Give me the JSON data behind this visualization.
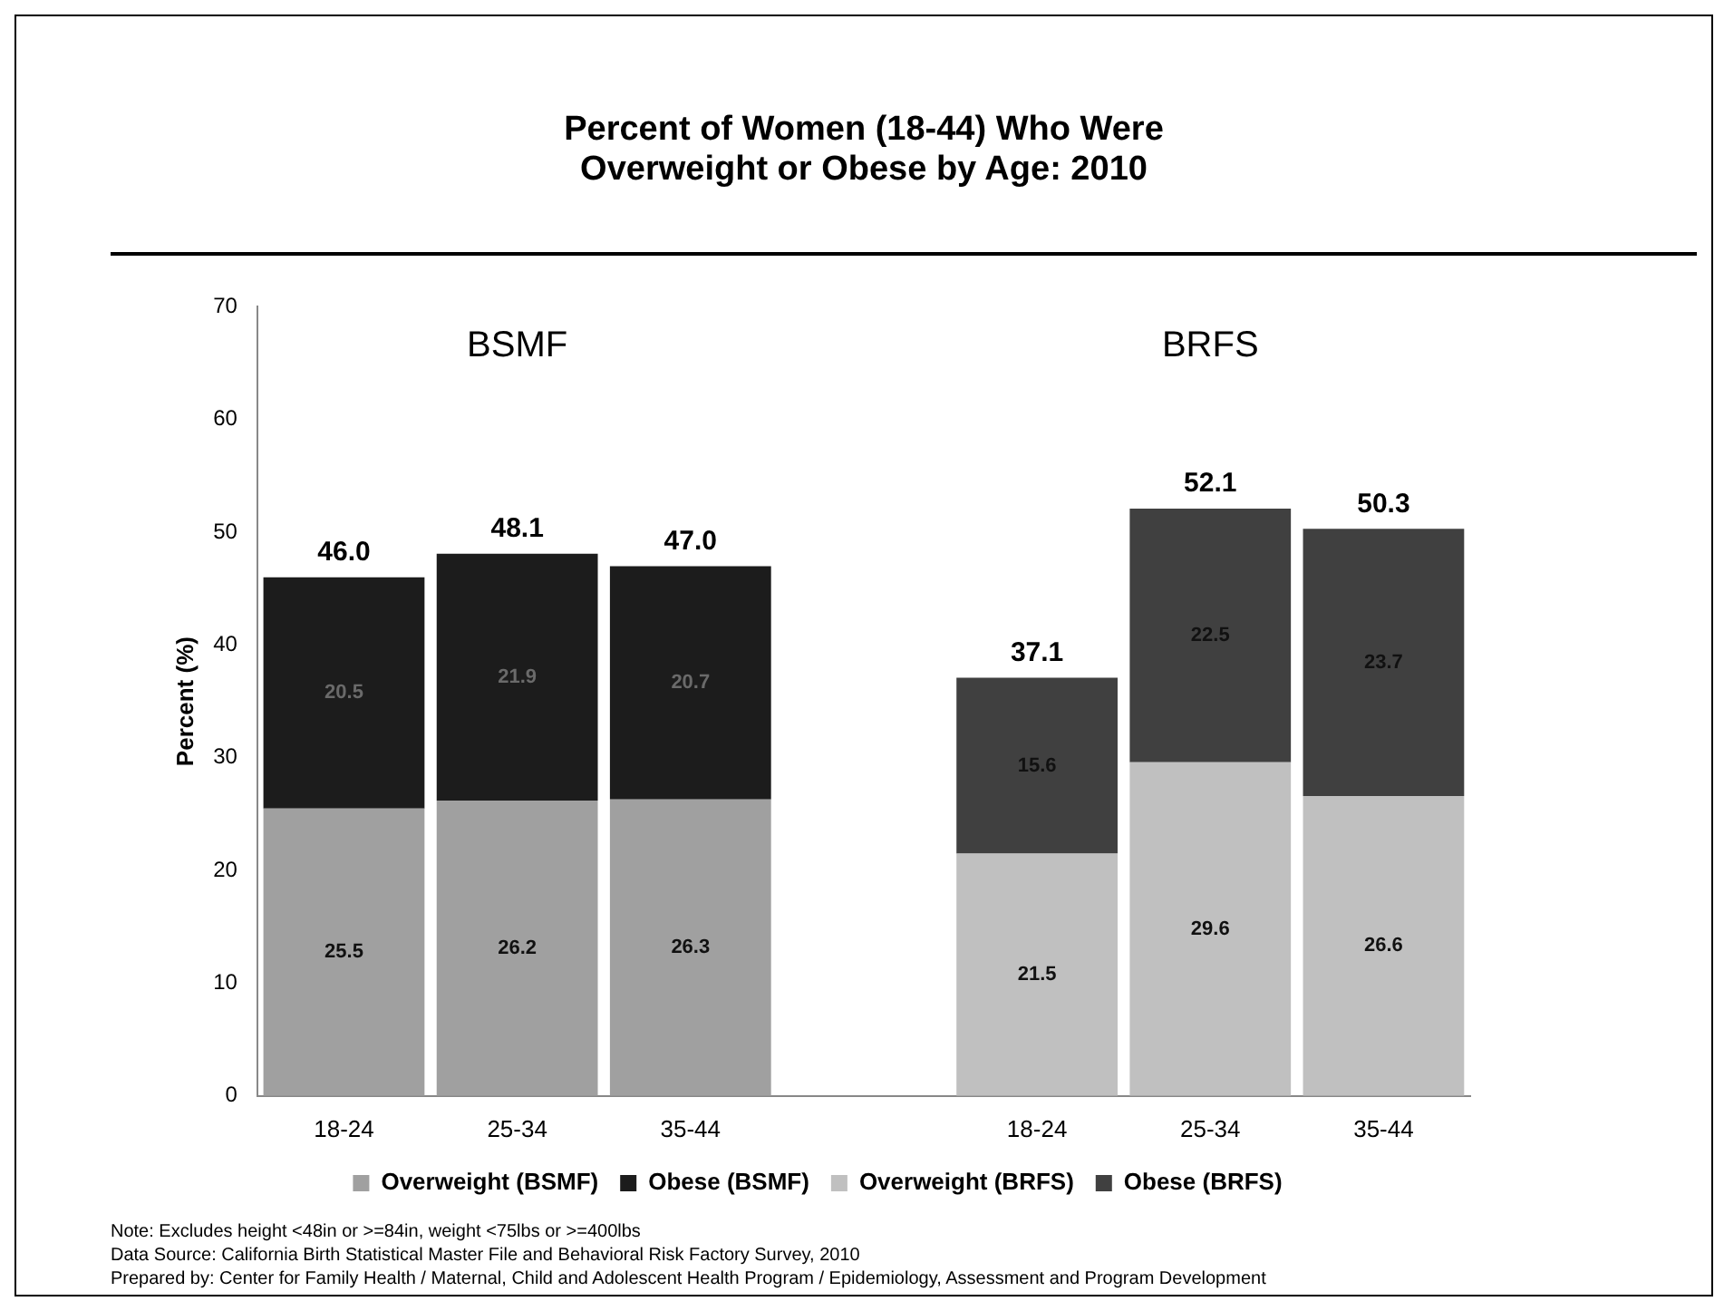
{
  "chart_data": {
    "type": "bar",
    "title": "Percent of Women (18-44) Who Were Overweight or Obese by Age: 2010",
    "ylabel": "Percent (%)",
    "categories": [
      "18-24",
      "25-34",
      "35-44",
      null,
      "18-24",
      "25-34",
      "35-44"
    ],
    "series": [
      {
        "name": "Overweight (BSMF)",
        "color": "#a0a0a0",
        "values": [
          25.5,
          26.2,
          26.3,
          null,
          null,
          null,
          null
        ]
      },
      {
        "name": "Obese (BSMF)",
        "color": "#1c1c1c",
        "values": [
          20.5,
          21.9,
          20.7,
          null,
          null,
          null,
          null
        ]
      },
      {
        "name": "Overweight (BRFS)",
        "color": "#c0c0c0",
        "values": [
          null,
          null,
          null,
          null,
          21.5,
          29.6,
          26.6
        ]
      },
      {
        "name": "Obese (BRFS)",
        "color": "#404040",
        "values": [
          null,
          null,
          null,
          null,
          15.6,
          22.5,
          23.7
        ]
      }
    ],
    "stacked": true,
    "data_labels": true,
    "totals": [
      "46.0",
      "48.1",
      "47.0",
      null,
      "37.1",
      "52.1",
      "50.3"
    ],
    "ylim": [
      0,
      70
    ],
    "yticks": [
      0,
      10,
      20,
      30,
      40,
      50,
      60,
      70
    ],
    "grid": false,
    "legend": "bottom",
    "annotations": [
      "BSMF",
      "BRFS",
      "Note: Excludes height <48in or >=84in, weight <75lbs or >=400lbs",
      "Data Source: California Birth Statistical Master File and Behavioral Risk Factory Survey, 2010",
      "Prepared by: Center for Family Health / Maternal, Child and Adolescent Health Program / Epidemiology, Assessment and Program Development"
    ]
  }
}
